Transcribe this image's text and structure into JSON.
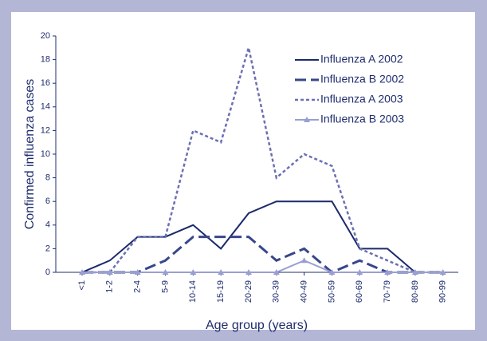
{
  "chart_data": {
    "type": "line",
    "x_label": "Age group (years)",
    "y_label": "Confirmed influenza cases",
    "categories": [
      "<1",
      "1-2",
      "2-4",
      "5-9",
      "10-14",
      "15-19",
      "20-29",
      "30-39",
      "40-49",
      "50-59",
      "60-69",
      "70-79",
      "80-89",
      "90-99"
    ],
    "series": [
      {
        "name": "Influenza A 2002",
        "color": "#1b2a6b",
        "style": "solid",
        "values": [
          0,
          1,
          3,
          3,
          4,
          2,
          5,
          6,
          6,
          6,
          2,
          2,
          0,
          0
        ]
      },
      {
        "name": "Influenza B 2002",
        "color": "#36478a",
        "style": "dashed",
        "values": [
          0,
          0,
          0,
          1,
          3,
          3,
          3,
          1,
          2,
          0,
          1,
          0,
          0,
          0
        ]
      },
      {
        "name": "Influenza A 2003",
        "color": "#6a70b2",
        "style": "dotted",
        "values": [
          0,
          0,
          3,
          3,
          12,
          11,
          19,
          8,
          10,
          9,
          2,
          1,
          0,
          0
        ]
      },
      {
        "name": "Influenza B 2003",
        "color": "#9a9fd2",
        "style": "triangle",
        "values": [
          0,
          0,
          0,
          0,
          0,
          0,
          0,
          0,
          1,
          0,
          0,
          0,
          0,
          0
        ]
      }
    ],
    "ylim": [
      0,
      20
    ],
    "yticks": [
      0,
      2,
      4,
      6,
      8,
      10,
      12,
      14,
      16,
      18,
      20
    ],
    "legend": "top-right"
  }
}
